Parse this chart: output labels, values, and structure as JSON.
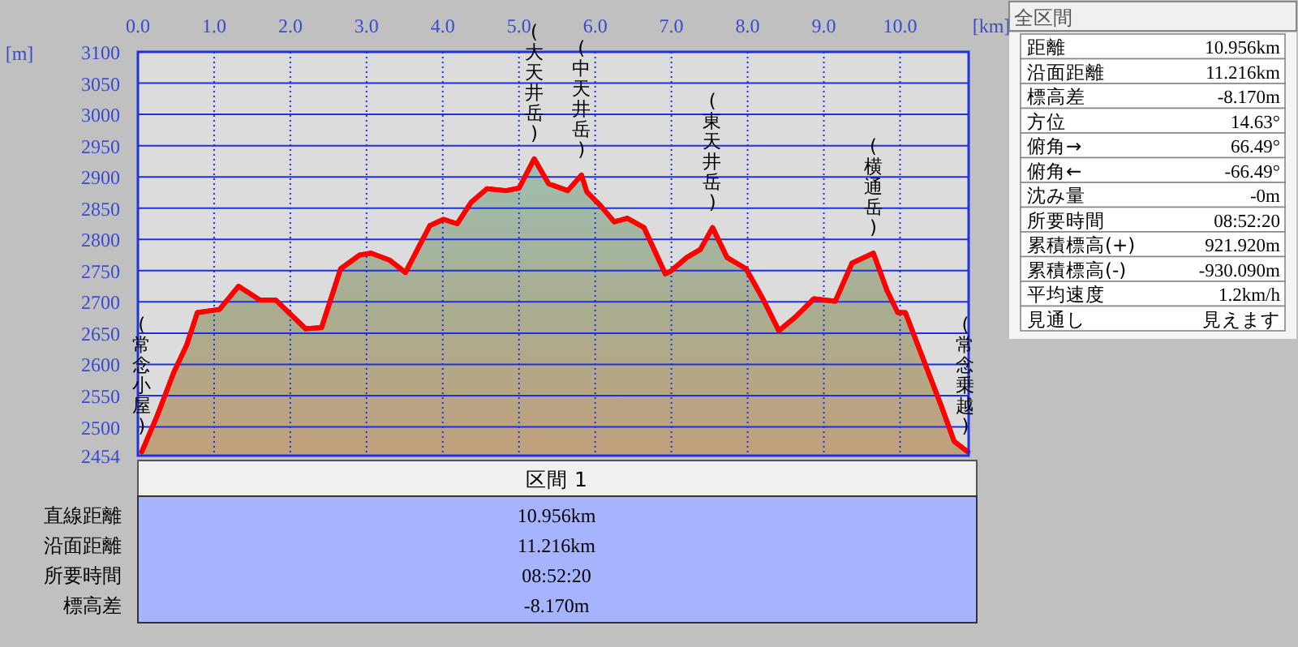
{
  "chart_data": {
    "type": "area",
    "xlabel": "[km]",
    "ylabel": "[m]",
    "x": [
      0.05,
      0.25,
      0.47,
      0.64,
      0.78,
      1.07,
      1.32,
      1.6,
      1.81,
      2.2,
      2.41,
      2.66,
      2.91,
      3.06,
      3.3,
      3.51,
      3.83,
      4.01,
      4.19,
      4.37,
      4.58,
      4.83,
      5.0,
      5.2,
      5.39,
      5.64,
      5.82,
      5.89,
      6.07,
      6.25,
      6.42,
      6.64,
      6.92,
      6.99,
      7.2,
      7.38,
      7.54,
      7.73,
      7.98,
      8.2,
      8.41,
      8.62,
      8.87,
      9.15,
      9.37,
      9.65,
      9.83,
      9.97,
      10.07,
      10.29,
      10.54,
      10.71,
      10.89
    ],
    "series": [
      {
        "color": "#ff0000",
        "values": [
          2460,
          2517,
          2587,
          2631,
          2683,
          2688,
          2725,
          2703,
          2703,
          2657,
          2659,
          2753,
          2775,
          2778,
          2767,
          2747,
          2822,
          2832,
          2825,
          2859,
          2881,
          2878,
          2882,
          2929,
          2889,
          2878,
          2903,
          2876,
          2854,
          2828,
          2834,
          2819,
          2745,
          2749,
          2771,
          2784,
          2819,
          2771,
          2753,
          2705,
          2654,
          2675,
          2705,
          2701,
          2762,
          2778,
          2718,
          2683,
          2683,
          2613,
          2534,
          2477,
          2460
        ]
      }
    ],
    "xlim": [
      0,
      10.9
    ],
    "ylim": [
      2454,
      3100
    ],
    "xticks": [
      {
        "value": 0,
        "label": "0.0"
      },
      {
        "value": 1,
        "label": "1.0"
      },
      {
        "value": 2,
        "label": "2.0"
      },
      {
        "value": 3,
        "label": "3.0"
      },
      {
        "value": 4,
        "label": "4.0"
      },
      {
        "value": 5,
        "label": "5.0"
      },
      {
        "value": 6,
        "label": "6.0"
      },
      {
        "value": 7,
        "label": "7.0"
      },
      {
        "value": 8,
        "label": "8.0"
      },
      {
        "value": 9,
        "label": "9.0"
      },
      {
        "value": 10,
        "label": "10.0"
      }
    ],
    "yticks": [
      2454,
      2500,
      2550,
      2600,
      2650,
      2700,
      2750,
      2800,
      2850,
      2900,
      2950,
      3000,
      3050,
      3100
    ],
    "grid": true,
    "annotations": [
      {
        "text": "(常念小屋)",
        "x": 0.05,
        "y": 2460
      },
      {
        "text": "(大天井岳)",
        "x": 5.2,
        "y": 2929
      },
      {
        "text": "(中天井岳)",
        "x": 5.82,
        "y": 2903
      },
      {
        "text": "(東天井岳)",
        "x": 7.54,
        "y": 2819
      },
      {
        "text": "(横通岳)",
        "x": 9.65,
        "y": 2778
      },
      {
        "text": "(常念乗越)",
        "x": 10.89,
        "y": 2460
      },
      "全区間",
      "距離",
      "10.956km",
      "沿面距離",
      "11.216km",
      "標高差",
      "-8.170m",
      "方位",
      "14.63°",
      "俯角→",
      "66.49°",
      "俯角←",
      "-66.49°",
      "沈み量",
      "-0m",
      "所要時間",
      "08:52:20",
      "累積標高(+)",
      "921.920m",
      "累積標高(-)",
      "-930.090m",
      "平均速度",
      "1.2km/h",
      "見通し",
      "見えます",
      "区間 1",
      "直線距離",
      "10.956km",
      "沿面距離",
      "11.216km",
      "所要時間",
      "08:52:20",
      "標高差",
      "-8.170m"
    ]
  }
}
